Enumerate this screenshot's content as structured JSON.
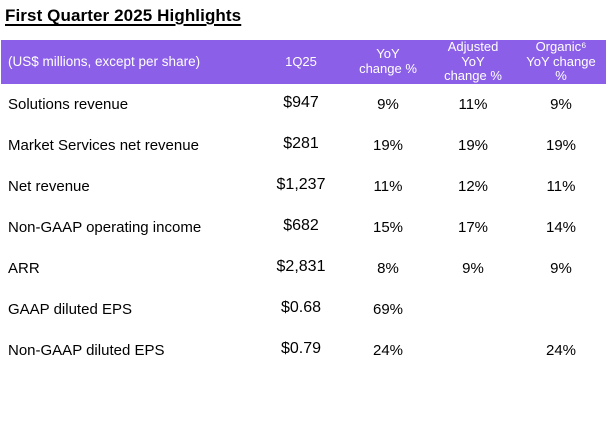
{
  "page_title": "First Quarter 2025 Highlights",
  "colors": {
    "header_bg": "#8B5FE8",
    "header_text": "#FFFFFF",
    "body_text": "#000000"
  },
  "table": {
    "headers": {
      "label": "(US$ millions, except per share)",
      "q": "1Q25",
      "yoy": "YoY\nchange %",
      "adj": "Adjusted\nYoY\nchange %",
      "org": "Organic⁶\nYoY change\n%"
    },
    "rows": [
      {
        "label": "Solutions revenue",
        "q": "$947",
        "yoy": "9%",
        "adj": "11%",
        "org": "9%"
      },
      {
        "label": "Market Services net revenue",
        "q": "$281",
        "yoy": "19%",
        "adj": "19%",
        "org": "19%"
      },
      {
        "label": "Net revenue",
        "q": "$1,237",
        "yoy": "11%",
        "adj": "12%",
        "org": "11%"
      },
      {
        "label": "Non-GAAP operating income",
        "q": "$682",
        "yoy": "15%",
        "adj": "17%",
        "org": "14%"
      },
      {
        "label": "ARR",
        "q": "$2,831",
        "yoy": "8%",
        "adj": "9%",
        "org": "9%"
      },
      {
        "label": "GAAP diluted EPS",
        "q": "$0.68",
        "yoy": "69%",
        "adj": "",
        "org": ""
      },
      {
        "label": "Non-GAAP diluted EPS",
        "q": "$0.79",
        "yoy": "24%",
        "adj": "",
        "org": "24%"
      }
    ]
  }
}
